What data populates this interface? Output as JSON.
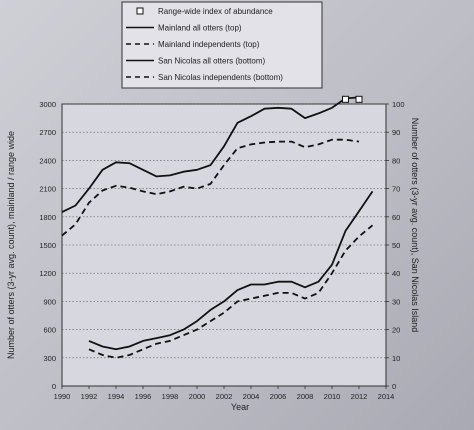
{
  "chart_data": {
    "type": "line",
    "title": "",
    "xlabel": "Year",
    "ylabel_left": "Number of otters (3-yr avg. count), mainland / range wide",
    "ylabel_right": "Number of otters (3-yr avg. count), San Nicolas Island",
    "xlim": [
      1990,
      2014
    ],
    "ylim_left": [
      0,
      3000
    ],
    "ylim_right": [
      0,
      100
    ],
    "x_ticks": [
      1990,
      1992,
      1994,
      1996,
      1998,
      2000,
      2002,
      2004,
      2006,
      2008,
      2010,
      2012,
      2014
    ],
    "y_ticks_left": [
      0,
      300,
      600,
      900,
      1200,
      1500,
      1800,
      2100,
      2400,
      2700,
      3000
    ],
    "y_ticks_right": [
      0,
      10,
      20,
      30,
      40,
      50,
      60,
      70,
      80,
      90,
      100
    ],
    "grid": "horizontal dotted",
    "legend_position": "top",
    "series": [
      {
        "name": "Range-wide index of abundance",
        "axis": "left",
        "style": "square-marker",
        "x": [
          2011,
          2012
        ],
        "y": [
          3050,
          3050
        ]
      },
      {
        "name": "Mainland all otters (top)",
        "axis": "left",
        "style": "solid",
        "x": [
          1990,
          1991,
          1992,
          1993,
          1994,
          1995,
          1996,
          1997,
          1998,
          1999,
          2000,
          2001,
          2002,
          2003,
          2004,
          2005,
          2006,
          2007,
          2008,
          2009,
          2010,
          2011,
          2012
        ],
        "y": [
          1850,
          1920,
          2100,
          2300,
          2380,
          2370,
          2300,
          2230,
          2240,
          2280,
          2300,
          2350,
          2550,
          2800,
          2870,
          2950,
          2960,
          2950,
          2850,
          2900,
          2960,
          3060,
          3070
        ]
      },
      {
        "name": "Mainland independents (top)",
        "axis": "left",
        "style": "dashed",
        "x": [
          1990,
          1991,
          1992,
          1993,
          1994,
          1995,
          1996,
          1997,
          1998,
          1999,
          2000,
          2001,
          2002,
          2003,
          2004,
          2005,
          2006,
          2007,
          2008,
          2009,
          2010,
          2011,
          2012
        ],
        "y": [
          1600,
          1720,
          1950,
          2080,
          2130,
          2110,
          2070,
          2040,
          2070,
          2120,
          2100,
          2150,
          2350,
          2530,
          2570,
          2590,
          2600,
          2600,
          2540,
          2570,
          2620,
          2620,
          2600
        ]
      },
      {
        "name": "San Nicolas all otters (bottom)",
        "axis": "right",
        "style": "solid",
        "x": [
          1992,
          1993,
          1994,
          1995,
          1996,
          1997,
          1998,
          1999,
          2000,
          2001,
          2002,
          2003,
          2004,
          2005,
          2006,
          2007,
          2008,
          2009,
          2010,
          2011,
          2012,
          2013
        ],
        "y": [
          16,
          14,
          13,
          14,
          16,
          17,
          18,
          20,
          23,
          27,
          30,
          34,
          36,
          36,
          37,
          37,
          35,
          37,
          43,
          55,
          62,
          69
        ]
      },
      {
        "name": "San Nicolas independents (bottom)",
        "axis": "right",
        "style": "dashed",
        "x": [
          1992,
          1993,
          1994,
          1995,
          1996,
          1997,
          1998,
          1999,
          2000,
          2001,
          2002,
          2003,
          2004,
          2005,
          2006,
          2007,
          2008,
          2009,
          2010,
          2011,
          2012,
          2013
        ],
        "y": [
          13,
          11,
          10,
          11,
          13,
          15,
          16,
          18,
          20,
          23,
          26,
          30,
          31,
          32,
          33,
          33,
          31,
          33,
          40,
          48,
          53,
          57
        ]
      }
    ]
  }
}
